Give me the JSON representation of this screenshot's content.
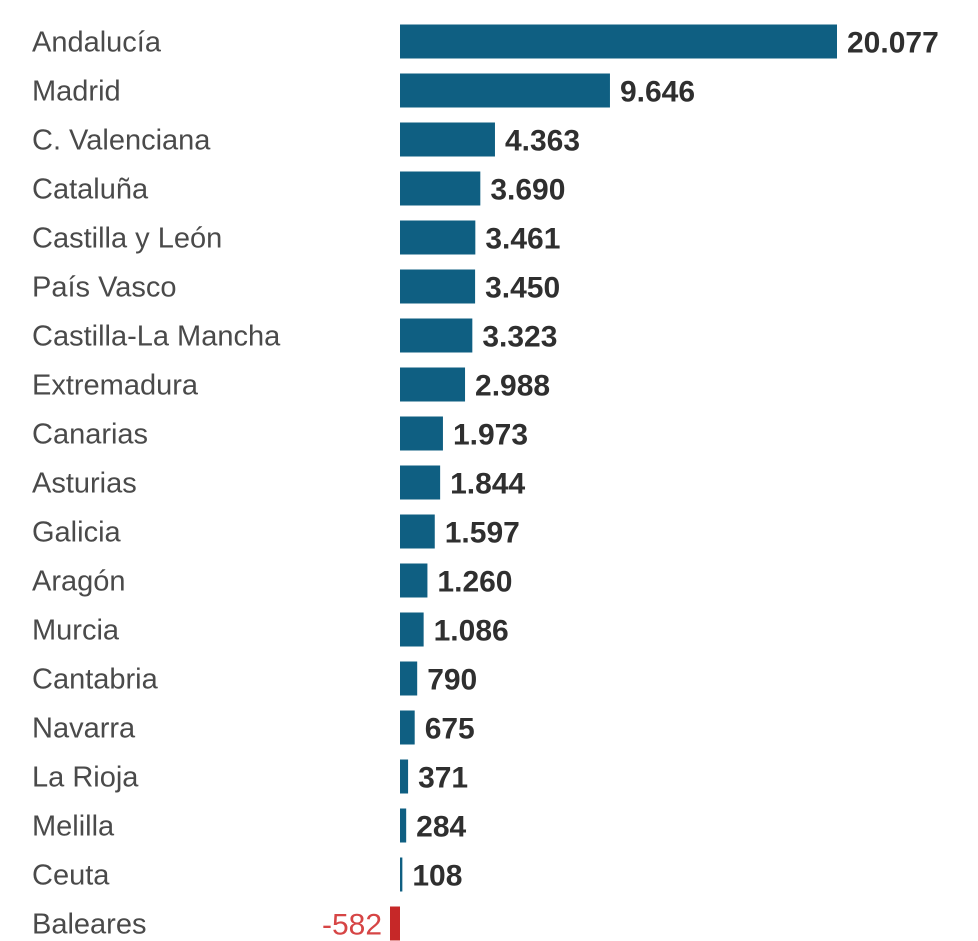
{
  "chart_data": {
    "type": "bar",
    "orientation": "horizontal",
    "title": "",
    "xlabel": "",
    "ylabel": "",
    "legend": "none",
    "grid": false,
    "categories": [
      "Andalucía",
      "Madrid",
      "C. Valenciana",
      "Cataluña",
      "Castilla y León",
      "País Vasco",
      "Castilla-La Mancha",
      "Extremadura",
      "Canarias",
      "Asturias",
      "Galicia",
      "Aragón",
      "Murcia",
      "Cantabria",
      "Navarra",
      "La Rioja",
      "Melilla",
      "Ceuta",
      "Baleares"
    ],
    "values": [
      20077,
      9646,
      4363,
      3690,
      3461,
      3450,
      3323,
      2988,
      1973,
      1844,
      1597,
      1260,
      1086,
      790,
      675,
      371,
      284,
      108,
      -582
    ],
    "value_labels": [
      "20.077",
      "9.646",
      "4.363",
      "3.690",
      "3.461",
      "3.450",
      "3.323",
      "2.988",
      "1.973",
      "1.844",
      "1.597",
      "1.260",
      "1.086",
      "790",
      "675",
      "371",
      "284",
      "108",
      "-582"
    ],
    "colors": {
      "positive": "#0f5f82",
      "negative": "#c62828",
      "negative_label": "#d64545"
    }
  }
}
